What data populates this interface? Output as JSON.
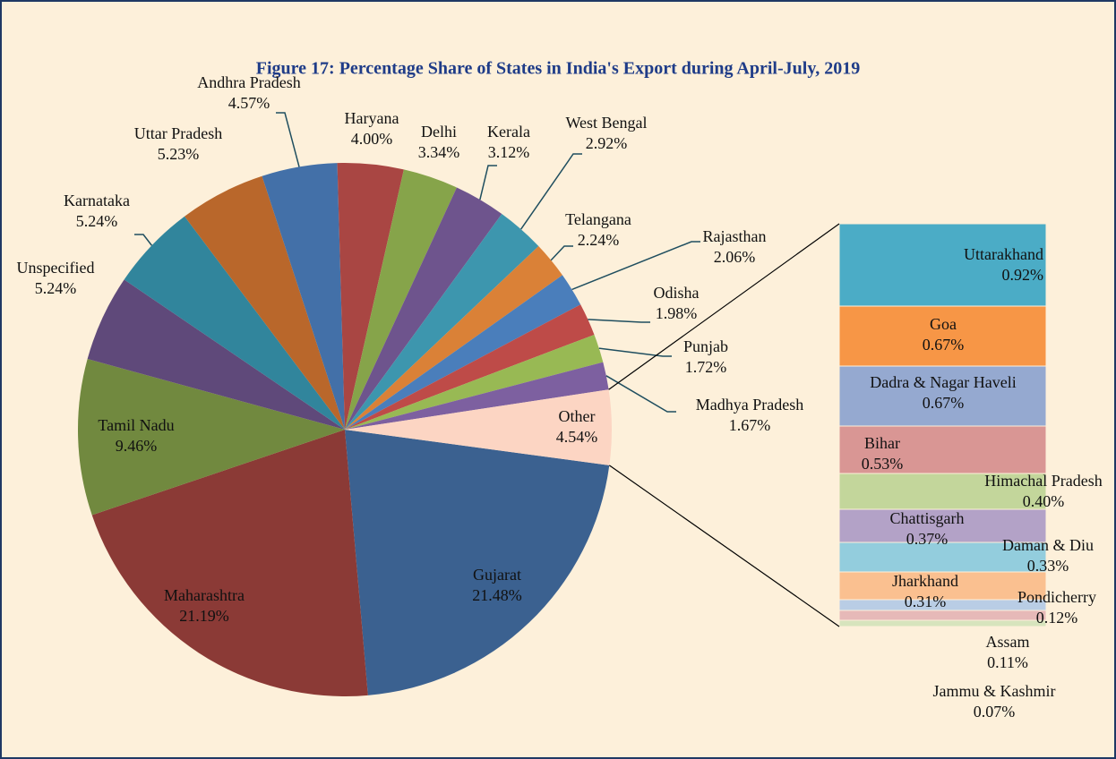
{
  "chart_data": {
    "type": "pie_of_bar",
    "title": "Figure 17: Percentage Share of States in India's Export during April-July, 2019",
    "pie": {
      "categories": [
        "Gujarat",
        "Maharashtra",
        "Tamil Nadu",
        "Unspecified",
        "Karnataka",
        "Uttar Pradesh",
        "Andhra Pradesh",
        "Haryana",
        "Delhi",
        "Kerala",
        "West Bengal",
        "Telangana",
        "Rajasthan",
        "Odisha",
        "Punjab",
        "Madhya Pradesh",
        "Other"
      ],
      "values": [
        21.48,
        21.19,
        9.46,
        5.24,
        5.24,
        5.23,
        4.57,
        4.0,
        3.34,
        3.12,
        2.92,
        2.24,
        2.06,
        1.98,
        1.72,
        1.67,
        4.54
      ],
      "value_labels": [
        "21.48%",
        "21.19%",
        "9.46%",
        "5.24%",
        "5.24%",
        "5.23%",
        "4.57%",
        "4.00%",
        "3.34%",
        "3.12%",
        "2.92%",
        "2.24%",
        "2.06%",
        "1.98%",
        "1.72%",
        "1.67%",
        "4.54%"
      ],
      "colors": [
        "#3b6190",
        "#8b3a36",
        "#71893f",
        "#5f497a",
        "#31859c",
        "#b9672b",
        "#4370a8",
        "#a94643",
        "#86a44a",
        "#6e548d",
        "#3d96ae",
        "#da8137",
        "#4a7ebb",
        "#be4b48",
        "#98b954",
        "#7d60a0",
        "#fcd5c3"
      ]
    },
    "bar": {
      "categories": [
        "Uttarakhand",
        "Goa",
        "Dadra & Nagar Haveli",
        "Bihar",
        "Himachal Pradesh",
        "Chattisgarh",
        "Daman & Diu",
        "Jharkhand",
        "Pondicherry",
        "Assam",
        "Jammu & Kashmir"
      ],
      "values": [
        0.92,
        0.67,
        0.67,
        0.53,
        0.4,
        0.37,
        0.33,
        0.31,
        0.12,
        0.11,
        0.07
      ],
      "value_labels": [
        "0.92%",
        "0.67%",
        "0.67%",
        "0.53%",
        "0.40%",
        "0.37%",
        "0.33%",
        "0.31%",
        "0.12%",
        "0.11%",
        "0.07%"
      ],
      "colors": [
        "#4bacc6",
        "#f79646",
        "#95a9d0",
        "#d99694",
        "#c3d69b",
        "#b3a2c7",
        "#93cddd",
        "#fac090",
        "#b9cde5",
        "#e6b9b8",
        "#d7e4bd"
      ]
    }
  }
}
